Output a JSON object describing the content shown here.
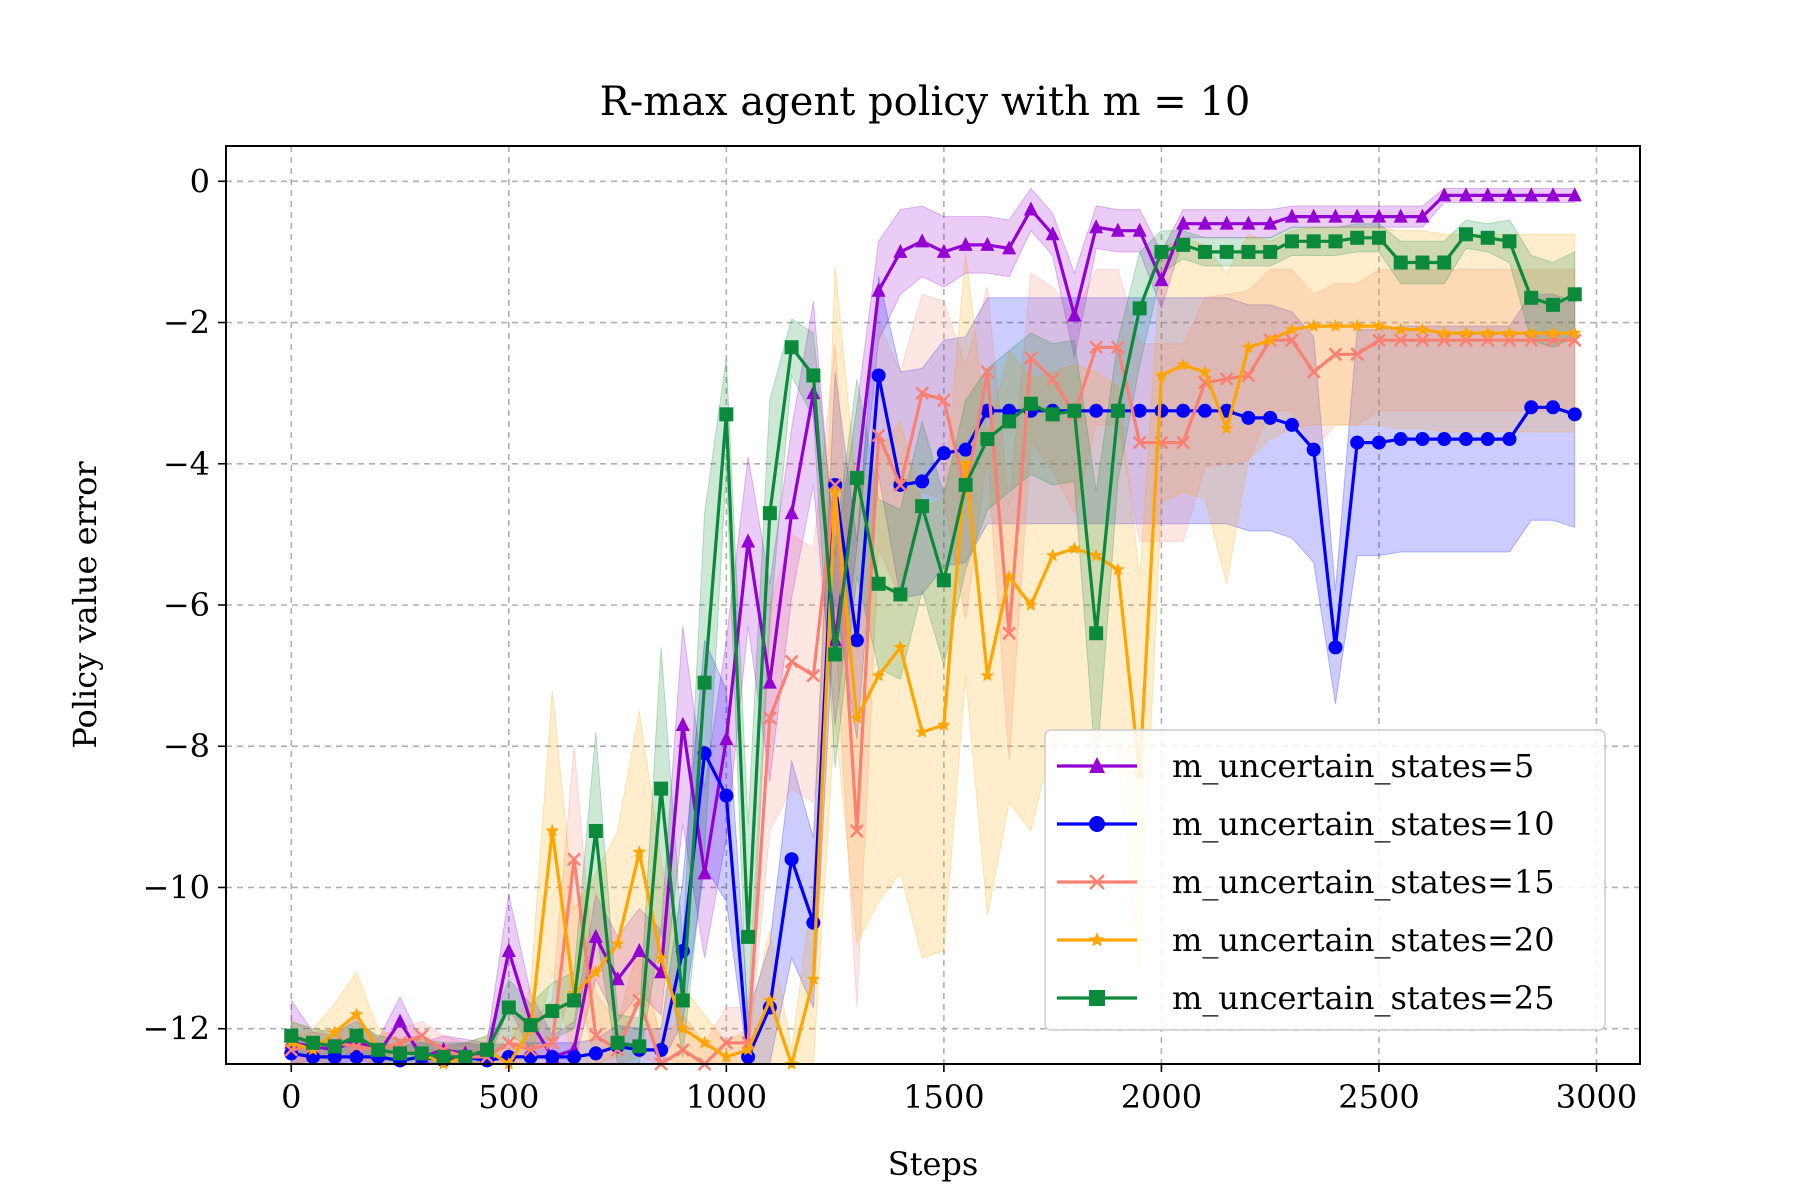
{
  "chart_data": {
    "type": "line",
    "title": "R-max agent policy with m = 10",
    "xlabel": "Steps",
    "ylabel": "Policy value error",
    "xlim": [
      -150,
      3100
    ],
    "ylim": [
      -12.5,
      0.5
    ],
    "xticks": [
      0,
      500,
      1000,
      1500,
      2000,
      2500,
      3000
    ],
    "xtick_labels": [
      "0",
      "500",
      "1000",
      "1500",
      "2000",
      "2500",
      "3000"
    ],
    "yticks": [
      0,
      -2,
      -4,
      -6,
      -8,
      -10,
      -12
    ],
    "ytick_labels": [
      "0",
      "−2",
      "−4",
      "−6",
      "−8",
      "−10",
      "−12"
    ],
    "grid": true,
    "legend_position": "lower-right",
    "x": [
      0,
      50,
      100,
      150,
      200,
      250,
      300,
      350,
      400,
      450,
      500,
      550,
      600,
      650,
      700,
      750,
      800,
      850,
      900,
      950,
      1000,
      1050,
      1100,
      1150,
      1200,
      1250,
      1300,
      1350,
      1400,
      1450,
      1500,
      1550,
      1600,
      1650,
      1700,
      1750,
      1800,
      1850,
      1900,
      1950,
      2000,
      2050,
      2100,
      2150,
      2200,
      2250,
      2300,
      2350,
      2400,
      2450,
      2500,
      2550,
      2600,
      2650,
      2700,
      2750,
      2800,
      2850,
      2900,
      2950
    ],
    "series": [
      {
        "name": "m_uncertain_states=5",
        "color": "#9400d3",
        "marker": "triangle",
        "values": [
          -12.2,
          -12.25,
          -12.3,
          -12.15,
          -12.35,
          -11.9,
          -12.4,
          -12.3,
          -12.35,
          -12.4,
          -10.9,
          -11.9,
          -12.4,
          -12.3,
          -10.7,
          -11.3,
          -10.9,
          -11.2,
          -7.7,
          -9.8,
          -7.9,
          -5.1,
          -7.1,
          -4.7,
          -3,
          -6.5,
          -4.2,
          -1.55,
          -1.0,
          -0.85,
          -1.0,
          -0.9,
          -0.9,
          -0.95,
          -0.4,
          -0.75,
          -1.9,
          -0.65,
          -0.7,
          -0.7,
          -1.4,
          -0.6,
          -0.6,
          -0.6,
          -0.6,
          -0.6,
          -0.5,
          -0.5,
          -0.5,
          -0.5,
          -0.5,
          -0.5,
          -0.5,
          -0.2,
          -0.2,
          -0.2,
          -0.2,
          -0.2,
          -0.2,
          -0.2
        ],
        "band": [
          0.6,
          0.2,
          0.2,
          0.3,
          0.2,
          0.35,
          0.2,
          0.2,
          0.2,
          0.2,
          0.8,
          0.4,
          0.3,
          0.4,
          0.6,
          0.6,
          0.6,
          0.6,
          1.4,
          1.2,
          1.4,
          1.2,
          1.4,
          1.2,
          1.3,
          1.2,
          1.0,
          0.7,
          0.6,
          0.5,
          0.5,
          0.4,
          0.4,
          0.4,
          0.3,
          0.3,
          0.6,
          0.3,
          0.3,
          0.3,
          0.4,
          0.2,
          0.2,
          0.2,
          0.2,
          0.2,
          0.15,
          0.15,
          0.15,
          0.15,
          0.15,
          0.15,
          0.15,
          0.1,
          0.1,
          0.1,
          0.1,
          0.1,
          0.1,
          0.1
        ]
      },
      {
        "name": "m_uncertain_states=10",
        "color": "#0000ff",
        "marker": "circle",
        "values": [
          -12.35,
          -12.4,
          -12.4,
          -12.4,
          -12.4,
          -12.45,
          -12.4,
          -12.45,
          -12.4,
          -12.45,
          -12.4,
          -12.4,
          -12.4,
          -12.4,
          -12.35,
          -12.25,
          -12.3,
          -12.3,
          -10.9,
          -8.1,
          -8.7,
          -12.4,
          -11.7,
          -9.6,
          -10.5,
          -4.3,
          -6.5,
          -2.75,
          -4.3,
          -4.25,
          -3.85,
          -3.8,
          -3.25,
          -3.25,
          -3.25,
          -3.25,
          -3.25,
          -3.25,
          -3.25,
          -3.25,
          -3.25,
          -3.25,
          -3.25,
          -3.25,
          -3.35,
          -3.35,
          -3.45,
          -3.8,
          -6.6,
          -3.7,
          -3.7,
          -3.65,
          -3.65,
          -3.65,
          -3.65,
          -3.65,
          -3.65,
          -3.2,
          -3.2,
          -3.3
        ],
        "band": [
          0.2,
          0.2,
          0.2,
          0.2,
          0.2,
          0.2,
          0.2,
          0.2,
          0.2,
          0.2,
          0.2,
          0.2,
          0.2,
          0.2,
          0.2,
          0.3,
          0.3,
          0.3,
          1.0,
          1.6,
          1.5,
          0.6,
          0.9,
          1.4,
          1.2,
          1.6,
          1.4,
          1.4,
          1.6,
          1.6,
          1.6,
          1.6,
          1.6,
          1.6,
          1.6,
          1.6,
          1.6,
          1.6,
          1.6,
          1.6,
          1.6,
          1.6,
          1.6,
          1.6,
          1.6,
          1.6,
          1.6,
          1.6,
          0.8,
          1.6,
          1.6,
          1.6,
          1.6,
          1.6,
          1.6,
          1.6,
          1.6,
          1.6,
          1.6,
          1.6
        ]
      },
      {
        "name": "m_uncertain_states=15",
        "color": "#fa8072",
        "marker": "x",
        "values": [
          -12.3,
          -12.25,
          -12.2,
          -12.25,
          -12.3,
          -12.2,
          -12.1,
          -12.3,
          -12.4,
          -12.4,
          -12.2,
          -12.3,
          -12.2,
          -9.6,
          -12.1,
          -12.3,
          -11.6,
          -12.5,
          -12.3,
          -12.5,
          -12.2,
          -12.2,
          -7.6,
          -6.8,
          -7.0,
          -4.3,
          -9.2,
          -3.6,
          -4.3,
          -3.0,
          -3.1,
          -4.4,
          -2.7,
          -6.4,
          -2.5,
          -2.8,
          -3.3,
          -2.35,
          -2.35,
          -3.7,
          -3.7,
          -3.7,
          -2.85,
          -2.8,
          -2.75,
          -2.25,
          -2.25,
          -2.7,
          -2.45,
          -2.45,
          -2.25,
          -2.25,
          -2.25,
          -2.25,
          -2.25,
          -2.25,
          -2.25,
          -2.25,
          -2.25,
          -2.25
        ],
        "band": [
          0.2,
          0.2,
          0.2,
          0.2,
          0.2,
          0.2,
          0.2,
          0.2,
          0.2,
          0.2,
          0.4,
          0.4,
          0.6,
          1.6,
          0.6,
          0.4,
          0.8,
          0.3,
          0.5,
          0.3,
          0.5,
          0.5,
          1.6,
          1.8,
          1.8,
          2.0,
          2.5,
          1.6,
          1.6,
          1.4,
          1.4,
          1.8,
          1.2,
          1.8,
          1.2,
          1.3,
          1.4,
          1.1,
          1.1,
          1.4,
          1.4,
          1.4,
          1.2,
          1.2,
          1.2,
          1.0,
          1.0,
          1.1,
          1.0,
          1.0,
          1.0,
          1.0,
          1.0,
          1.0,
          1.0,
          1.0,
          1.0,
          1.0,
          1.0,
          1.0
        ]
      },
      {
        "name": "m_uncertain_states=20",
        "color": "#ffa500",
        "marker": "star",
        "values": [
          -12.2,
          -12.3,
          -12.05,
          -11.8,
          -12.3,
          -12.35,
          -12.35,
          -12.5,
          -12.4,
          -12.3,
          -12.5,
          -12.0,
          -9.2,
          -11.5,
          -11.2,
          -10.8,
          -9.5,
          -11.0,
          -12.0,
          -12.2,
          -12.4,
          -12.3,
          -11.6,
          -12.5,
          -11.3,
          -4.4,
          -7.6,
          -7.0,
          -6.6,
          -7.8,
          -7.7,
          -4.0,
          -7.0,
          -5.6,
          -6.0,
          -5.3,
          -5.2,
          -5.3,
          -5.5,
          -8.4,
          -2.75,
          -2.6,
          -2.7,
          -3.5,
          -2.35,
          -2.25,
          -2.1,
          -2.05,
          -2.05,
          -2.05,
          -2.05,
          -2.1,
          -2.1,
          -2.15,
          -2.15,
          -2.15,
          -2.15,
          -2.15,
          -2.15,
          -2.15
        ],
        "band": [
          0.3,
          0.3,
          0.4,
          0.6,
          0.3,
          0.2,
          0.2,
          0.2,
          0.2,
          0.2,
          0.2,
          0.6,
          2.0,
          1.2,
          1.4,
          1.6,
          2.0,
          1.4,
          0.6,
          0.4,
          0.2,
          0.3,
          1.0,
          0.2,
          1.4,
          3.2,
          3.2,
          3.2,
          3.2,
          3.2,
          3.2,
          3.0,
          3.4,
          3.2,
          3.2,
          2.6,
          2.6,
          2.6,
          2.6,
          2.8,
          1.8,
          1.8,
          1.8,
          2.2,
          1.6,
          1.4,
          1.4,
          1.4,
          1.4,
          1.4,
          1.4,
          1.4,
          1.4,
          1.4,
          1.4,
          1.4,
          1.4,
          1.4,
          1.4,
          1.4
        ]
      },
      {
        "name": "m_uncertain_states=25",
        "color": "#0a8a3a",
        "marker": "square",
        "values": [
          -12.1,
          -12.2,
          -12.25,
          -12.1,
          -12.3,
          -12.35,
          -12.35,
          -12.4,
          -12.4,
          -12.3,
          -11.7,
          -11.95,
          -11.75,
          -11.6,
          -9.2,
          -12.2,
          -12.25,
          -8.6,
          -11.6,
          -7.1,
          -3.3,
          -10.7,
          -4.7,
          -2.35,
          -2.75,
          -6.7,
          -4.2,
          -5.7,
          -5.85,
          -4.6,
          -5.65,
          -4.3,
          -3.65,
          -3.4,
          -3.15,
          -3.3,
          -3.25,
          -6.4,
          -3.25,
          -1.8,
          -1.0,
          -0.9,
          -1.0,
          -1.0,
          -1.0,
          -1.0,
          -0.85,
          -0.85,
          -0.85,
          -0.8,
          -0.8,
          -1.15,
          -1.15,
          -1.15,
          -0.75,
          -0.8,
          -0.85,
          -1.65,
          -1.75,
          -1.6
        ],
        "band": [
          0.2,
          0.2,
          0.2,
          0.2,
          0.2,
          0.2,
          0.2,
          0.2,
          0.2,
          0.2,
          0.4,
          0.3,
          0.4,
          0.4,
          1.4,
          0.4,
          0.4,
          2.0,
          0.8,
          2.4,
          0.8,
          1.6,
          1.6,
          0.4,
          0.6,
          1.6,
          1.4,
          1.2,
          1.2,
          1.2,
          1.2,
          1.2,
          1.0,
          1.0,
          1.0,
          1.0,
          1.0,
          2.0,
          1.0,
          0.8,
          0.3,
          0.2,
          0.2,
          0.2,
          0.2,
          0.2,
          0.2,
          0.2,
          0.2,
          0.2,
          0.2,
          0.3,
          0.3,
          0.3,
          0.2,
          0.2,
          0.3,
          0.6,
          0.6,
          0.6
        ]
      }
    ]
  }
}
